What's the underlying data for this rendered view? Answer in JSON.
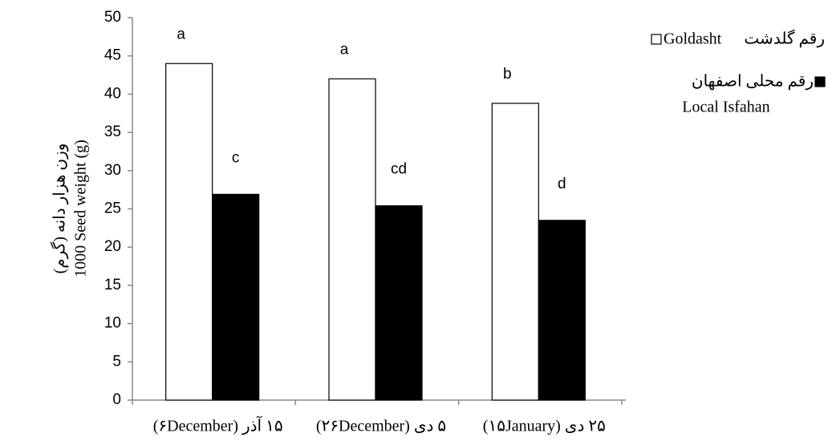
{
  "chart_data": {
    "type": "bar",
    "y_label_lines": [
      "وزن هزار دانه (گرم)",
      "1000 Seed weight (g)"
    ],
    "categories": [
      "۱۵ آذر (۶December)",
      "۵ دی (۲۶December)",
      "۲۵ دی (۱۵January)"
    ],
    "series": [
      {
        "name": "رقم گلدشت",
        "english_name": "Goldasht",
        "color": "#ffffff",
        "values": [
          44,
          42,
          38.8
        ],
        "letters": [
          "a",
          "a",
          "b"
        ]
      },
      {
        "name": "رقم محلی اصفهان",
        "english_name": "Local Isfahan",
        "color": "#000000",
        "values": [
          26.9,
          25.4,
          23.5
        ],
        "letters": [
          "c",
          "cd",
          "d"
        ]
      }
    ],
    "ylim": [
      0,
      50
    ],
    "yticks": [
      0,
      5,
      10,
      15,
      20,
      25,
      30,
      35,
      40,
      45,
      50
    ],
    "grid": false
  }
}
